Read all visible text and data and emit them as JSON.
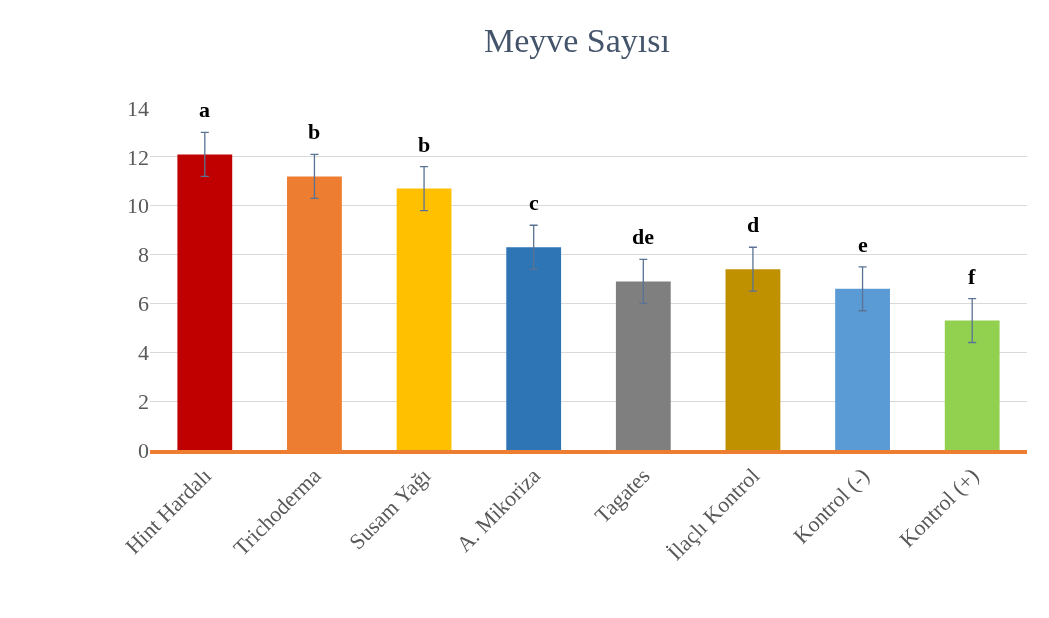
{
  "chart_data": {
    "type": "bar",
    "title": "Meyve Sayısı",
    "categories": [
      "Hint Hardalı",
      "Trichoderma",
      "Susam Yağı",
      "A. Mikoriza",
      "Tagates",
      "İlaçlı Kontrol",
      "Kontrol (-)",
      "Kontrol (+)"
    ],
    "values": [
      12.1,
      11.2,
      10.7,
      8.3,
      6.9,
      7.4,
      6.6,
      5.3
    ],
    "colors": [
      "#c00000",
      "#ed7d31",
      "#ffc000",
      "#2e75b6",
      "#7f7f7f",
      "#bf9000",
      "#5b9bd5",
      "#92d050"
    ],
    "errors": [
      0.9,
      0.9,
      0.9,
      0.9,
      0.9,
      0.9,
      0.9,
      0.9
    ],
    "ylim": [
      0,
      14
    ],
    "yticks": [
      0,
      2,
      4,
      6,
      8,
      10,
      12,
      14
    ],
    "grid": "y",
    "annotations": [
      {
        "text": "a",
        "x": "Hint Hardalı",
        "y": 13.0
      },
      {
        "text": "b",
        "x": "Trichoderma",
        "y": 12.1
      },
      {
        "text": "b",
        "x": "Susam Yağı",
        "y": 11.6
      },
      {
        "text": "c",
        "x": "A. Mikoriza",
        "y": 9.2
      },
      {
        "text": "de",
        "x": "Tagates",
        "y": 7.8
      },
      {
        "text": "d",
        "x": "İlaçlı Kontrol",
        "y": 8.3
      },
      {
        "text": "e",
        "x": "Kontrol (-)",
        "y": 7.5
      },
      {
        "text": "f",
        "x": "Kontrol (+)",
        "y": 6.2
      }
    ]
  }
}
